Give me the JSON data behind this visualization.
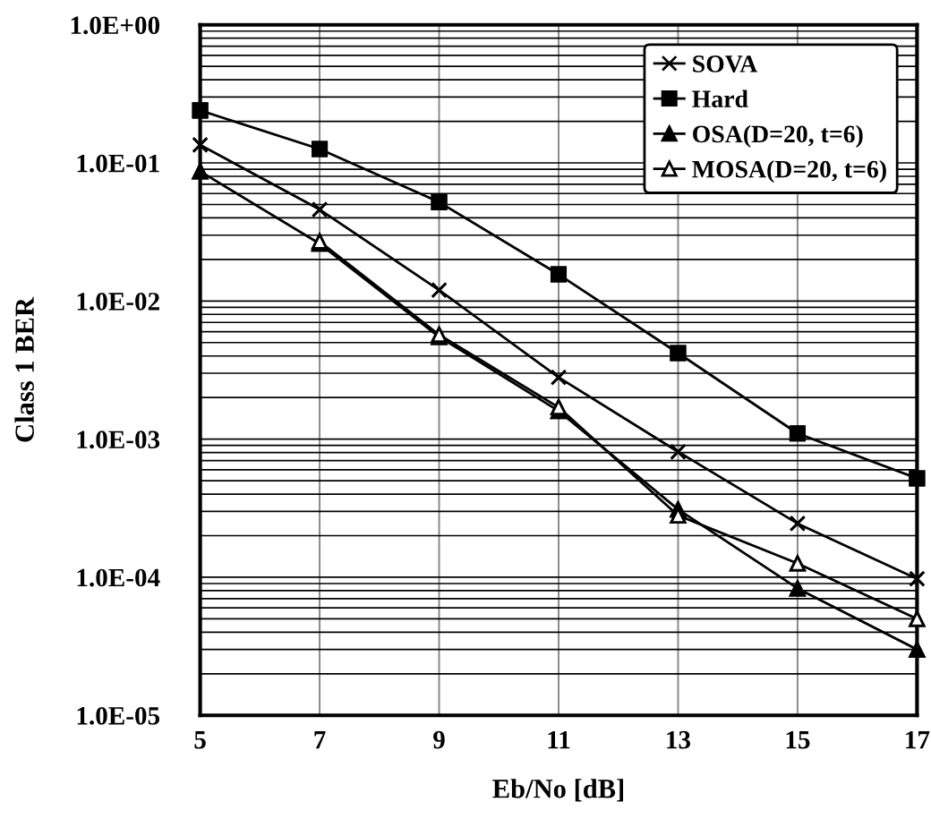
{
  "chart_data": {
    "type": "line",
    "xlabel": "Eb/No [dB]",
    "ylabel": "Class 1 BER",
    "log": "y",
    "x": [
      5,
      7,
      9,
      11,
      13,
      15,
      17
    ],
    "xlim": [
      5,
      17
    ],
    "xticks": [
      5,
      7,
      9,
      11,
      13,
      15,
      17
    ],
    "ylim": [
      1e-05,
      1
    ],
    "yticks": [
      {
        "value": 1,
        "label": "1.0E+00"
      },
      {
        "value": 0.1,
        "label": "1.0E-01"
      },
      {
        "value": 0.01,
        "label": "1.0E-02"
      },
      {
        "value": 0.001,
        "label": "1.0E-03"
      },
      {
        "value": 0.0001,
        "label": "1.0E-04"
      },
      {
        "value": 1e-05,
        "label": "1.0E-05"
      }
    ],
    "grid": true,
    "legend": "top right",
    "line_style": "solid",
    "series": [
      {
        "name": "SOVA",
        "color": "#000000",
        "marker": "cross",
        "values": [
          0.135,
          0.046,
          0.012,
          0.0028,
          0.00081,
          0.000245,
          9.75e-05
        ]
      },
      {
        "name": "Hard",
        "color": "#000000",
        "marker": "square",
        "values": [
          0.24,
          0.126,
          0.052,
          0.0156,
          0.0042,
          0.0011,
          0.00052
        ]
      },
      {
        "name": "OSA(D=20, t=6)",
        "color": "#000000",
        "marker": "triangle",
        "values": [
          0.087,
          0.026,
          0.0055,
          0.0016,
          0.00031,
          8.3e-05,
          3e-05
        ]
      },
      {
        "name": "MOSA(D=20, t=6)",
        "color": "#000000",
        "marker": "triangle_open",
        "values": [
          null,
          0.027,
          0.0057,
          0.0017,
          0.00028,
          0.000126,
          5e-05
        ]
      }
    ]
  }
}
